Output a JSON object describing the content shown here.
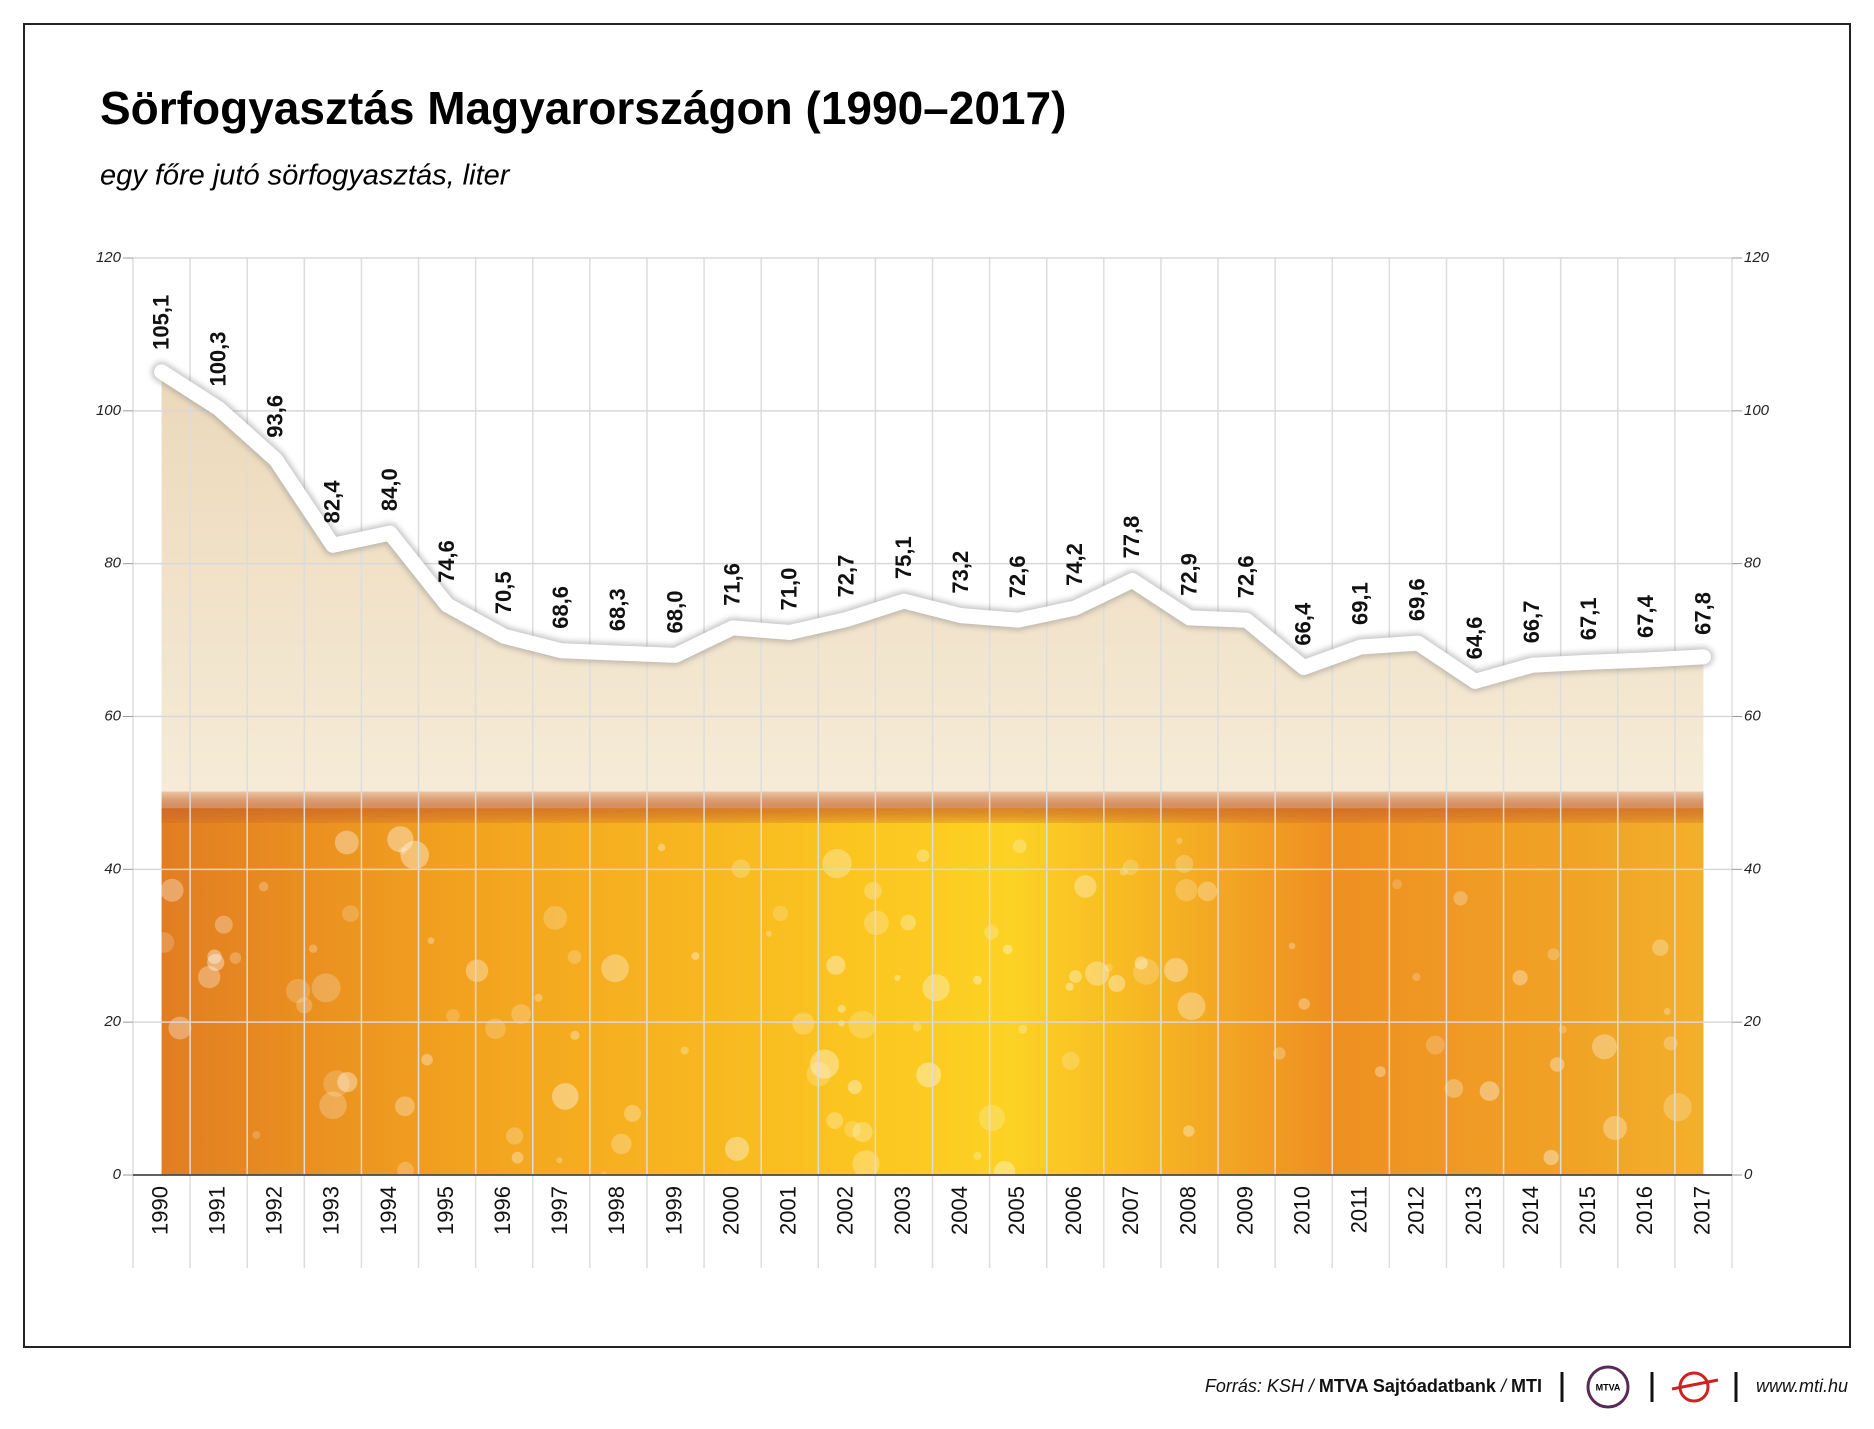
{
  "chart_data": {
    "type": "line",
    "title": "Sörfogyasztás Magyarországon (1990–2017)",
    "subtitle": "egy főre jutó sörfogyasztás, liter",
    "categories": [
      "1990",
      "1991",
      "1992",
      "1993",
      "1994",
      "1995",
      "1996",
      "1997",
      "1998",
      "1999",
      "2000",
      "2001",
      "2002",
      "2003",
      "2004",
      "2005",
      "2006",
      "2007",
      "2008",
      "2009",
      "2010",
      "2011",
      "2012",
      "2013",
      "2014",
      "2015",
      "2016",
      "2017"
    ],
    "values": [
      105.1,
      100.3,
      93.6,
      82.4,
      84.0,
      74.6,
      70.5,
      68.6,
      68.3,
      68.0,
      71.6,
      71.0,
      72.7,
      75.1,
      73.2,
      72.6,
      74.2,
      77.8,
      72.9,
      72.6,
      66.4,
      69.1,
      69.6,
      64.6,
      66.7,
      67.1,
      67.4,
      67.8
    ],
    "value_labels": [
      "105,1",
      "100,3",
      "93,6",
      "82,4",
      "84,0",
      "74,6",
      "70,5",
      "68,6",
      "68,3",
      "68,0",
      "71,6",
      "71,0",
      "72,7",
      "75,1",
      "73,2",
      "72,6",
      "74,2",
      "77,8",
      "72,9",
      "72,6",
      "66,4",
      "69,1",
      "69,6",
      "64,6",
      "66,7",
      "67,1",
      "67,4",
      "67,8"
    ],
    "color": "#ffffff",
    "ylim": [
      0,
      120
    ],
    "yticks": [
      0,
      20,
      40,
      60,
      80,
      100,
      120
    ],
    "grid": true,
    "source_parts": [
      "Forrás: KSH /",
      "MTVA Sajtóadatbank",
      "/",
      "MTI"
    ],
    "logo_text": "MTVA",
    "website": "www.mti.hu"
  }
}
